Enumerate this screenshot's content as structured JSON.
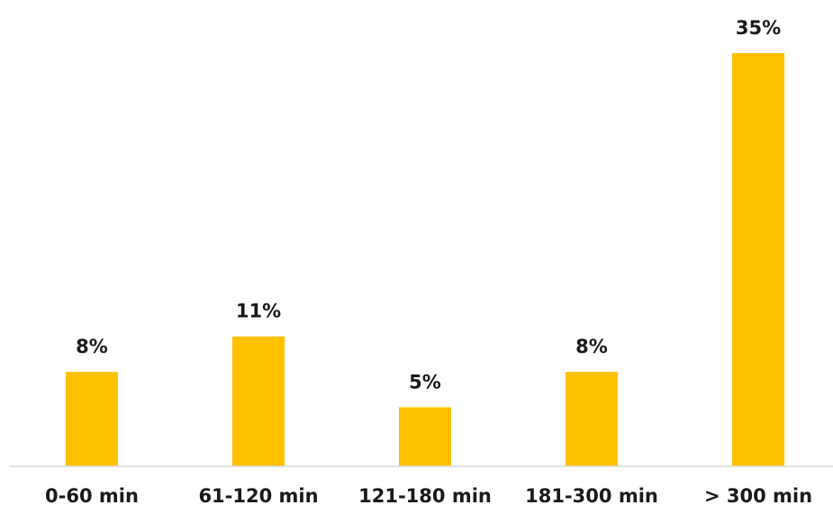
{
  "chart_data": {
    "type": "bar",
    "categories": [
      "0-60 min",
      "61-120 min",
      "121-180 min",
      "181-300 min",
      "> 300 min"
    ],
    "values": [
      8,
      11,
      5,
      8,
      35
    ],
    "data_labels": [
      "8%",
      "11%",
      "5%",
      "8%",
      "35%"
    ],
    "title": "",
    "xlabel": "",
    "ylabel": "",
    "ylim": [
      0,
      35
    ],
    "grid": false,
    "legend": "none",
    "colors": {
      "bar": "#FFC000",
      "axis": "#D9D9D9",
      "text": "#1A1A1A"
    }
  }
}
